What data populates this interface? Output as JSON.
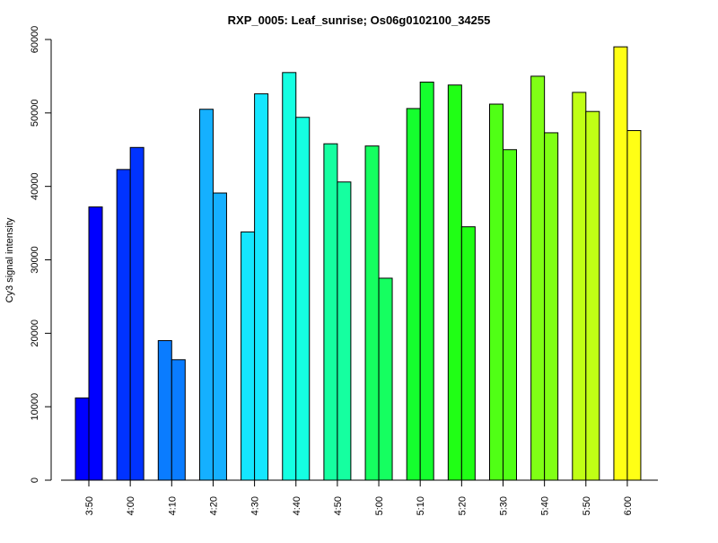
{
  "chart_data": {
    "type": "bar",
    "title": "RXP_0005: Leaf_sunrise; Os06g0102100_34255",
    "xlabel": "",
    "ylabel": "Cy3 signal intensity",
    "ylim": [
      0,
      60000
    ],
    "yticks": [
      0,
      10000,
      20000,
      30000,
      40000,
      50000,
      60000
    ],
    "grid": false,
    "legend": "none",
    "categories": [
      "3:50",
      "4:00",
      "4:10",
      "4:20",
      "4:30",
      "4:40",
      "4:50",
      "5:00",
      "5:10",
      "5:20",
      "5:30",
      "5:40",
      "5:50",
      "6:00"
    ],
    "series": [
      {
        "values": [
          11200,
          42300,
          19000,
          50500,
          33800,
          55500,
          45800,
          45500,
          50600,
          53800,
          51200,
          55000,
          52800,
          59000
        ]
      },
      {
        "values": [
          37200,
          45300,
          16400,
          39100,
          52600,
          49400,
          40600,
          27500,
          54200,
          34500,
          45000,
          47300,
          50200,
          47600
        ]
      }
    ],
    "group_colors": [
      "#0000FF",
      "#0033FF",
      "#0A7CFF",
      "#15B0FF",
      "#15E6FF",
      "#15FFE2",
      "#15FFA0",
      "#15FF60",
      "#15FF2E",
      "#20FF15",
      "#50FF15",
      "#80FF15",
      "#C0FF15",
      "#FFFF15"
    ]
  }
}
